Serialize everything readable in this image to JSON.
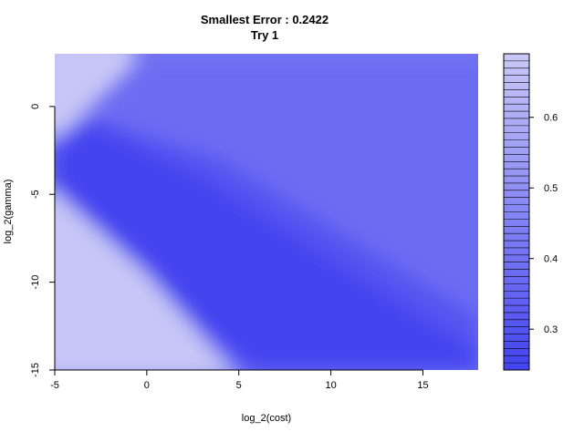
{
  "chart_data": {
    "type": "heatmap",
    "title": "Smallest Error : 0.2422",
    "subtitle": "Try 1",
    "xlabel": "log_2(cost)",
    "ylabel": "log_2(gamma)",
    "xlim": [
      -5,
      18
    ],
    "ylim": [
      -15,
      3
    ],
    "x_ticks": [
      -5,
      0,
      5,
      10,
      15
    ],
    "y_ticks": [
      0,
      -5,
      -10,
      -15
    ],
    "colorbar": {
      "range": [
        0.2422,
        0.69
      ],
      "ticks": [
        0.3,
        0.4,
        0.5,
        0.6
      ],
      "low_color": "#4343f0",
      "high_color": "#c9c9f7"
    },
    "regions": [
      {
        "description": "min error region (diagonal band)",
        "value": 0.25
      },
      {
        "description": "upper-right plateau",
        "value": 0.38
      },
      {
        "description": "upper-left corner",
        "value": 0.68
      },
      {
        "description": "lower-left triangle",
        "value": 0.68
      }
    ]
  }
}
